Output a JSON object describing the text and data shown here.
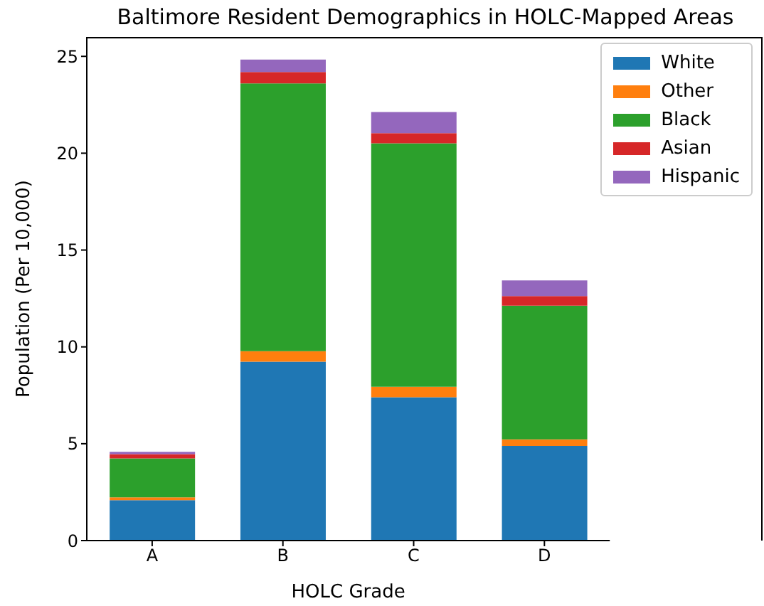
{
  "chart_data": {
    "type": "bar",
    "title": "Baltimore Resident Demographics in HOLC-Mapped Areas",
    "xlabel": "HOLC Grade",
    "ylabel": "Population (Per 10,000)",
    "categories": [
      "A",
      "B",
      "C",
      "D"
    ],
    "stacked": true,
    "ylim": [
      0,
      26
    ],
    "yticks": [
      0,
      5,
      10,
      15,
      20,
      25
    ],
    "grid": false,
    "legend": "top right",
    "series": [
      {
        "name": "White",
        "color": "#1f77b4",
        "values": [
          2.08,
          9.24,
          7.4,
          4.88
        ]
      },
      {
        "name": "Other",
        "color": "#ff7f0e",
        "values": [
          0.15,
          0.54,
          0.54,
          0.34
        ]
      },
      {
        "name": "Black",
        "color": "#2ca02c",
        "values": [
          2.01,
          13.82,
          12.57,
          6.91
        ]
      },
      {
        "name": "Asian",
        "color": "#d62728",
        "values": [
          0.22,
          0.59,
          0.52,
          0.49
        ]
      },
      {
        "name": "Hispanic",
        "color": "#9467bd",
        "values": [
          0.12,
          0.64,
          1.1,
          0.81
        ]
      }
    ]
  }
}
